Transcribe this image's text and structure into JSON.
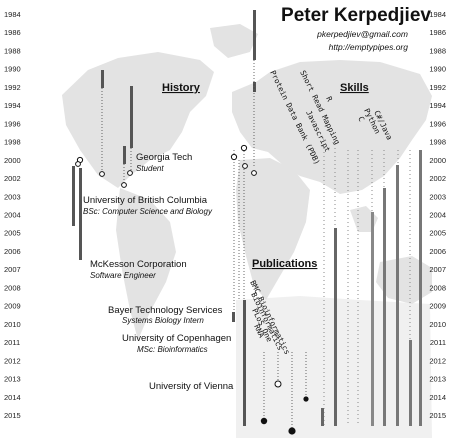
{
  "header": {
    "name": "Peter Kerpedjiev",
    "email": "pkerpedjiev@gmail.com",
    "website": "http://emptypipes.org"
  },
  "sections": {
    "history": "History",
    "skills": "Skills",
    "publications": "Publications"
  },
  "years": [
    "1984",
    "1986",
    "1988",
    "1990",
    "1992",
    "1994",
    "1996",
    "1998",
    "2000",
    "2002",
    "2003",
    "2004",
    "2005",
    "2006",
    "2007",
    "2008",
    "2009",
    "2010",
    "2011",
    "2012",
    "2013",
    "2014",
    "2015"
  ],
  "history": [
    {
      "institution": "Georgia Tech",
      "role": "Student"
    },
    {
      "institution": "University of British Columbia",
      "role": "BSc: Computer Science and Biology"
    },
    {
      "institution": "McKesson Corporation",
      "role": "Software Engineer"
    },
    {
      "institution": "Bayer Technology Services",
      "role": "Systems Biology Intern"
    },
    {
      "institution": "University of Copenhagen",
      "role": "MSc: Bioinformatics"
    },
    {
      "institution": "University of Vienna",
      "role": ""
    }
  ],
  "skills": [
    "Protein Data Bank (PDB)",
    "Short Read Mapping",
    "R",
    "Javascript",
    "C",
    "Python",
    "C#/Java"
  ],
  "publications": [
    "BMC Bioinformatics",
    "Bioinformatics",
    "PLoS One",
    "RNA"
  ],
  "colors": {
    "bar": "#555555",
    "land": "#e3e3e3",
    "text": "#111111"
  }
}
